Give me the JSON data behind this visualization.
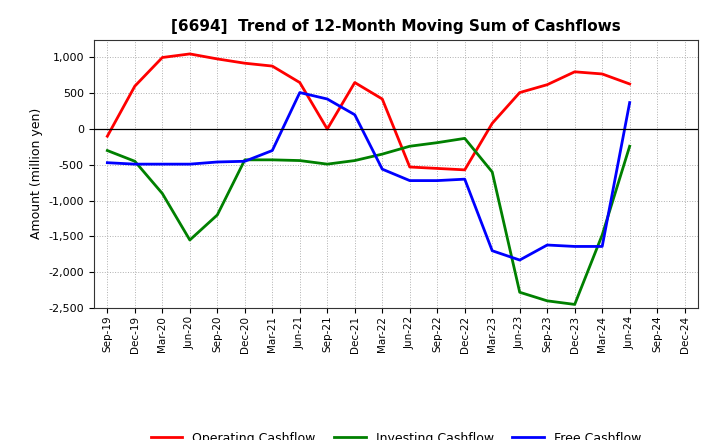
{
  "title": "[6694]  Trend of 12-Month Moving Sum of Cashflows",
  "ylabel": "Amount (million yen)",
  "x_labels": [
    "Sep-19",
    "Dec-19",
    "Mar-20",
    "Jun-20",
    "Sep-20",
    "Dec-20",
    "Mar-21",
    "Jun-21",
    "Sep-21",
    "Dec-21",
    "Mar-22",
    "Jun-22",
    "Sep-22",
    "Dec-22",
    "Mar-23",
    "Jun-23",
    "Sep-23",
    "Dec-23",
    "Mar-24",
    "Jun-24",
    "Sep-24",
    "Dec-24"
  ],
  "operating": [
    -100,
    600,
    1000,
    1050,
    980,
    920,
    880,
    650,
    0,
    650,
    420,
    -530,
    -550,
    -570,
    80,
    510,
    620,
    800,
    770,
    630,
    null,
    null
  ],
  "investing": [
    -300,
    -450,
    -900,
    -1550,
    -1200,
    -430,
    -430,
    -440,
    -490,
    -440,
    -350,
    -240,
    -190,
    -130,
    -600,
    -2280,
    -2400,
    -2450,
    -1480,
    -240,
    null,
    null
  ],
  "free": [
    -470,
    -490,
    -490,
    -490,
    -460,
    -450,
    -300,
    510,
    420,
    200,
    -560,
    -720,
    -720,
    -700,
    -1700,
    -1830,
    -1620,
    -1640,
    -1640,
    370,
    null,
    null
  ],
  "ylim": [
    -2500,
    1250
  ],
  "yticks": [
    -2500,
    -2000,
    -1500,
    -1000,
    -500,
    0,
    500,
    1000
  ],
  "operating_color": "#ff0000",
  "investing_color": "#008000",
  "free_color": "#0000ff",
  "bg_color": "#ffffff",
  "grid_color": "#b0b0b0",
  "legend_labels": [
    "Operating Cashflow",
    "Investing Cashflow",
    "Free Cashflow"
  ]
}
